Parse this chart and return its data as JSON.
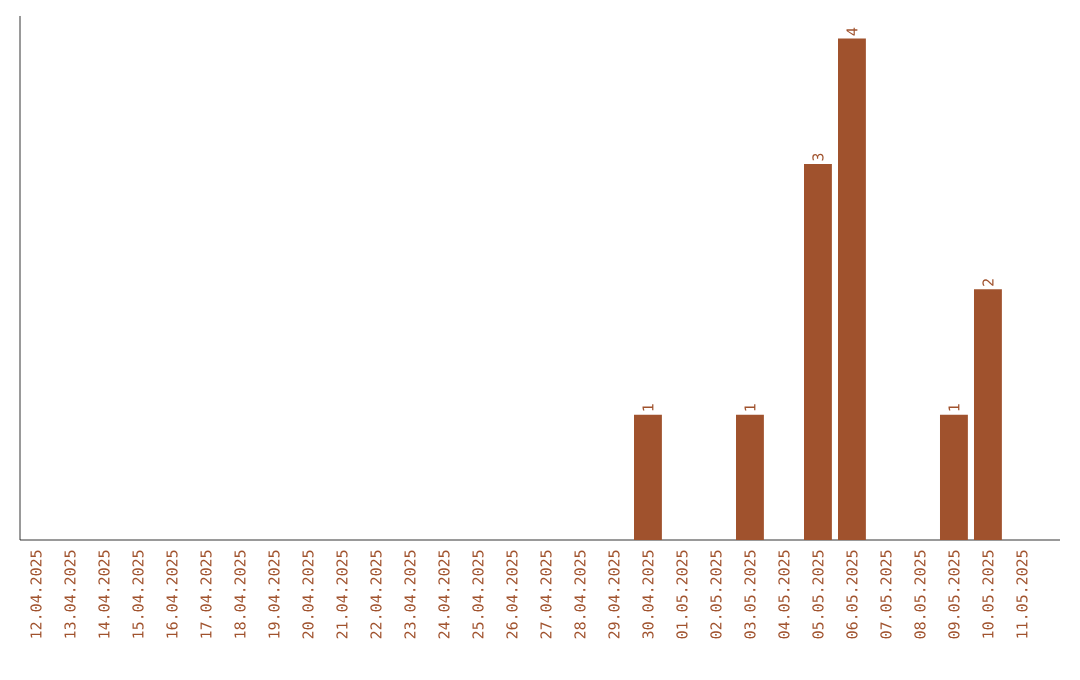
{
  "chart_data": {
    "type": "bar",
    "categories": [
      "12.04.2025",
      "13.04.2025",
      "14.04.2025",
      "15.04.2025",
      "16.04.2025",
      "17.04.2025",
      "18.04.2025",
      "19.04.2025",
      "20.04.2025",
      "21.04.2025",
      "22.04.2025",
      "23.04.2025",
      "24.04.2025",
      "25.04.2025",
      "26.04.2025",
      "27.04.2025",
      "28.04.2025",
      "29.04.2025",
      "30.04.2025",
      "01.05.2025",
      "02.05.2025",
      "03.05.2025",
      "04.05.2025",
      "05.05.2025",
      "06.05.2025",
      "07.05.2025",
      "08.05.2025",
      "09.05.2025",
      "10.05.2025",
      "11.05.2025"
    ],
    "values": [
      null,
      null,
      null,
      null,
      null,
      null,
      null,
      null,
      null,
      null,
      null,
      null,
      null,
      null,
      null,
      null,
      null,
      null,
      1,
      null,
      null,
      1,
      null,
      3,
      4,
      null,
      null,
      1,
      2,
      null
    ],
    "data_labels": true,
    "color": "#a0522d",
    "grid": false,
    "legend": false
  }
}
